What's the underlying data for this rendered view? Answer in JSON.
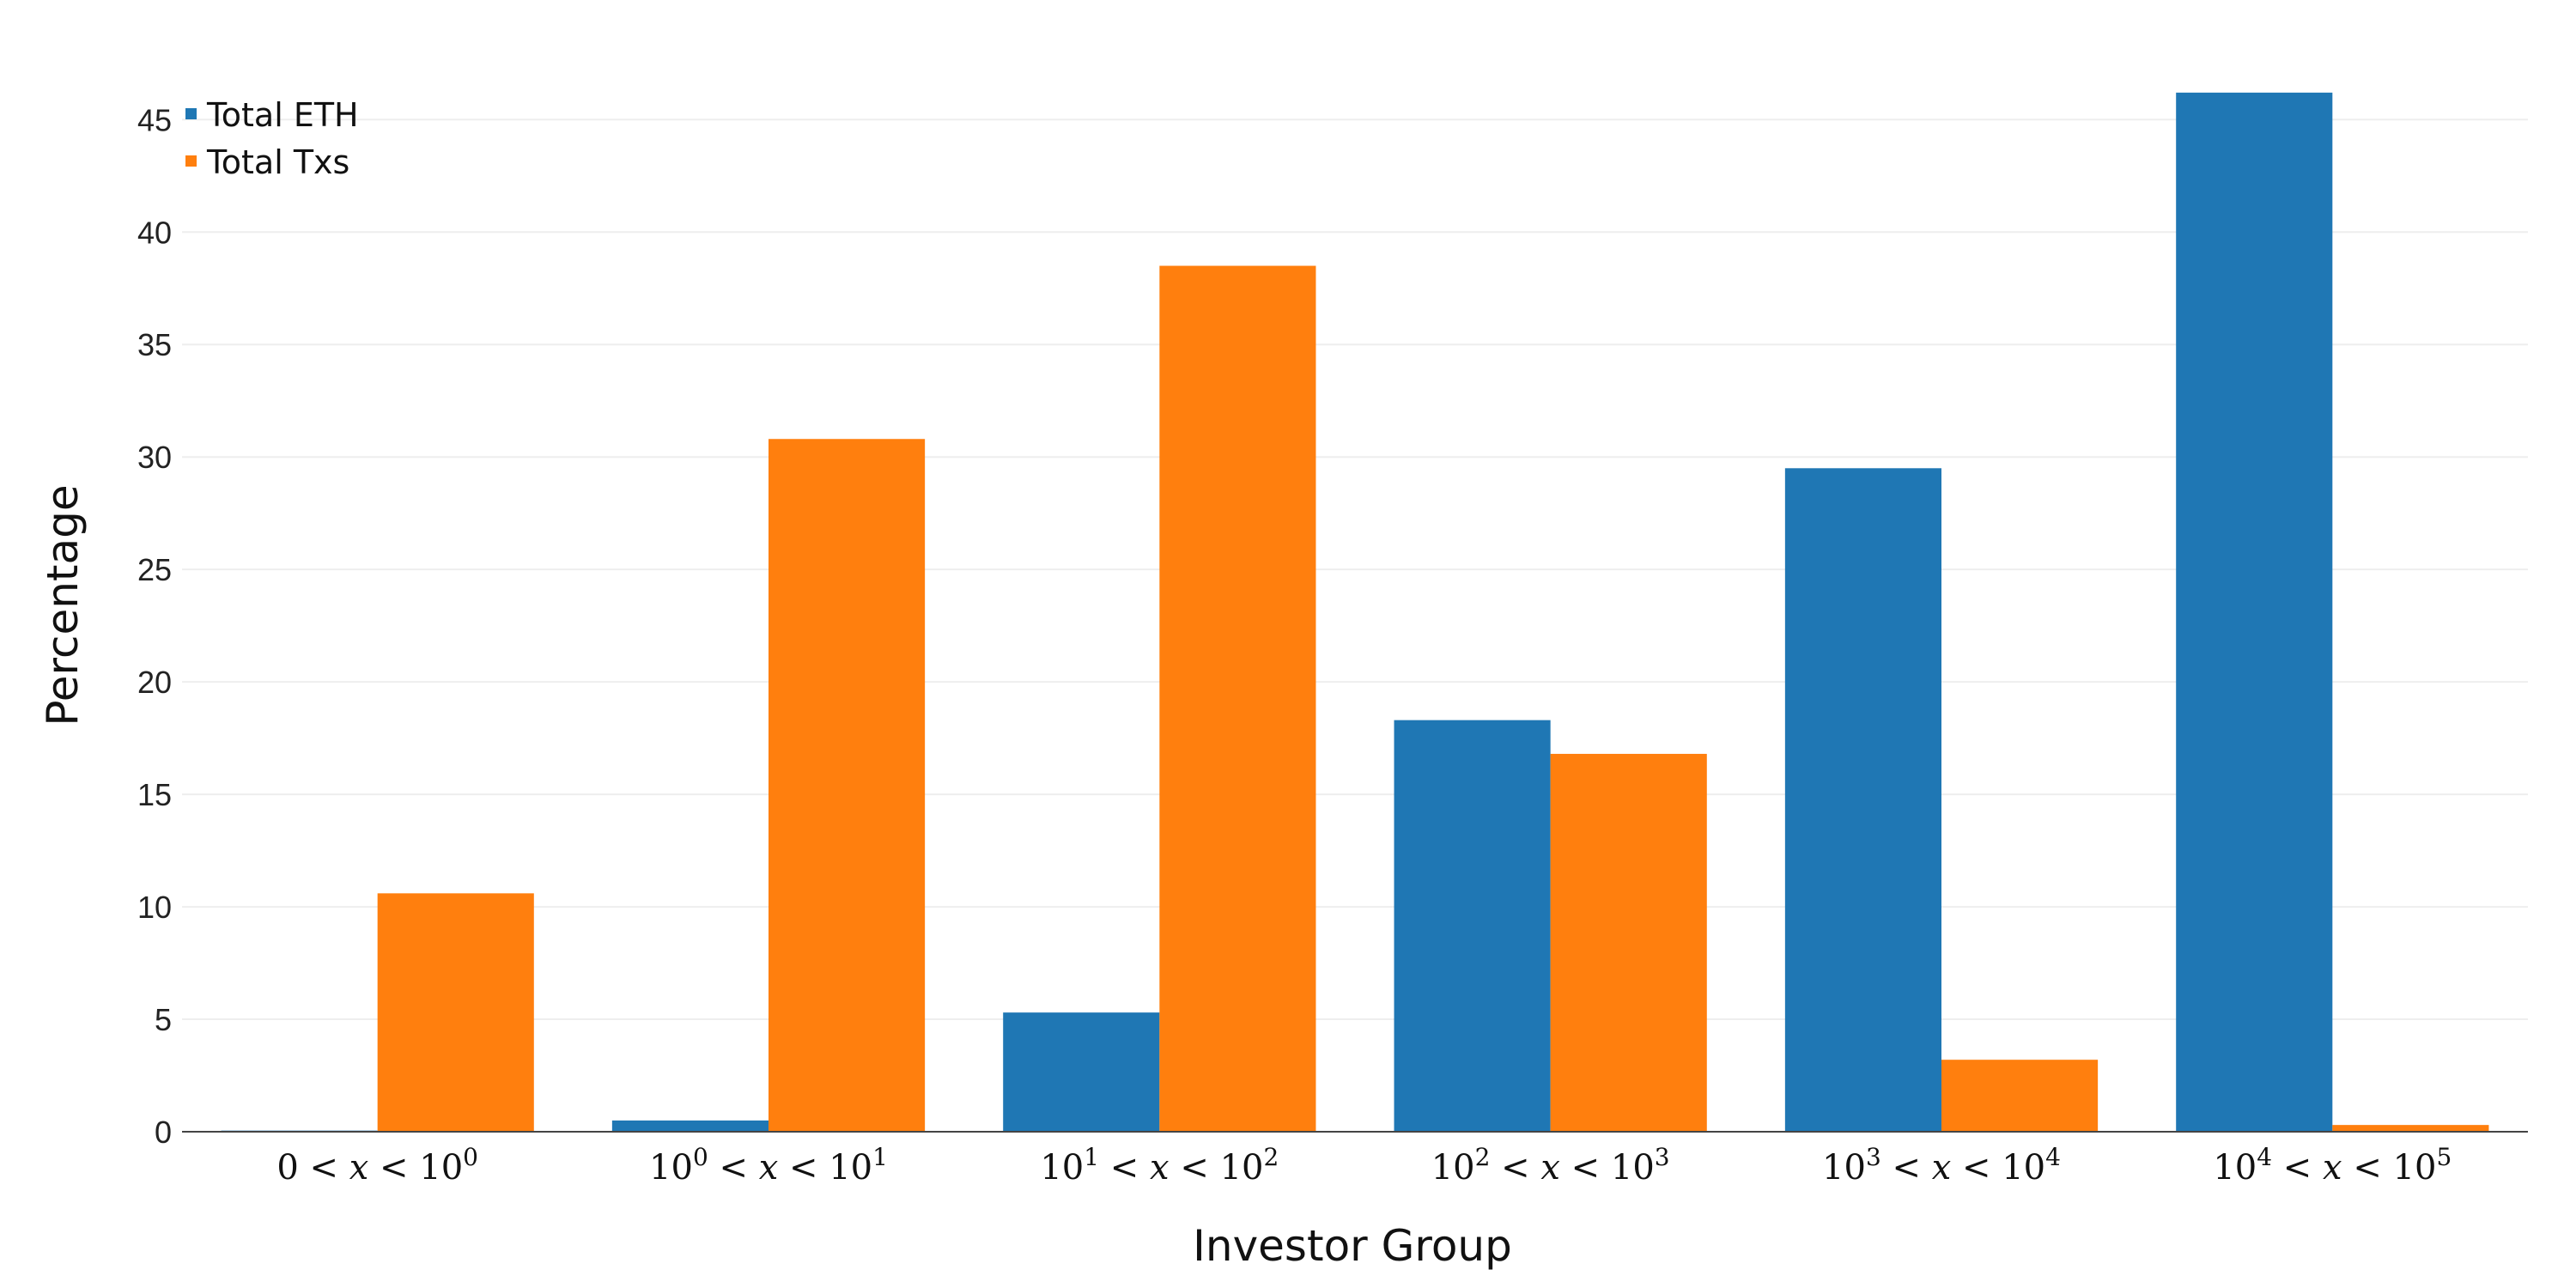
{
  "chart_data": {
    "type": "bar",
    "xlabel": "Investor Group",
    "ylabel": "Percentage",
    "ylim": [
      0,
      46.5
    ],
    "yticks": [
      0,
      5,
      10,
      15,
      20,
      25,
      30,
      35,
      40,
      45
    ],
    "grid": true,
    "legend_position": "top-left",
    "categories": [
      "0 < x < 10^0",
      "10^0 < x < 10^1",
      "10^1 < x < 10^2",
      "10^2 < x < 10^3",
      "10^3 < x < 10^4",
      "10^4 < x < 10^5"
    ],
    "category_parts": [
      {
        "left": "0",
        "left_exp": "",
        "right_base": "10",
        "right_exp": "0"
      },
      {
        "left": "10",
        "left_exp": "0",
        "right_base": "10",
        "right_exp": "1"
      },
      {
        "left": "10",
        "left_exp": "1",
        "right_base": "10",
        "right_exp": "2"
      },
      {
        "left": "10",
        "left_exp": "2",
        "right_base": "10",
        "right_exp": "3"
      },
      {
        "left": "10",
        "left_exp": "3",
        "right_base": "10",
        "right_exp": "4"
      },
      {
        "left": "10",
        "left_exp": "4",
        "right_base": "10",
        "right_exp": "5"
      }
    ],
    "series": [
      {
        "name": "Total ETH",
        "color": "#1f77b4",
        "values": [
          0.05,
          0.5,
          5.3,
          18.3,
          29.5,
          46.2
        ]
      },
      {
        "name": "Total Txs",
        "color": "#ff7f0e",
        "values": [
          10.6,
          30.8,
          38.5,
          16.8,
          3.2,
          0.3
        ]
      }
    ]
  },
  "legend": {
    "items": [
      {
        "label": "Total ETH",
        "color": "#1f77b4"
      },
      {
        "label": "Total Txs",
        "color": "#ff7f0e"
      }
    ]
  }
}
